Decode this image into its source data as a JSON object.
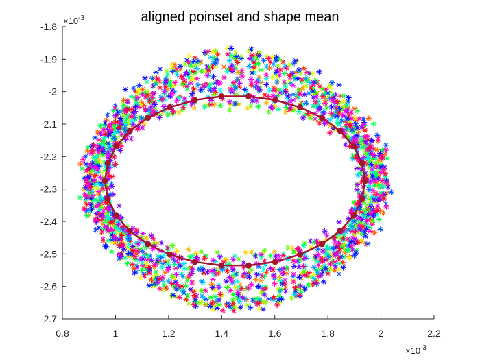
{
  "chart_data": {
    "type": "scatter",
    "title": "aligned poinset and shape mean",
    "xlabel": "",
    "ylabel": "",
    "xlim": [
      0.8,
      2.2
    ],
    "ylim": [
      -2.7,
      -1.8
    ],
    "xticks": [
      "0.8",
      "1",
      "1.2",
      "1.4",
      "1.6",
      "1.8",
      "2",
      "2.2"
    ],
    "yticks": [
      "-1.8",
      "-1.9",
      "-2",
      "-2.1",
      "-2.2",
      "-2.3",
      "-2.4",
      "-2.5",
      "-2.6",
      "-2.7"
    ],
    "x_exponent": {
      "base": "×10",
      "power": "-3"
    },
    "y_exponent": {
      "base": "×10",
      "power": "-3"
    },
    "grid": false,
    "legend": "none",
    "pointset": {
      "description_marker": "*",
      "count_per_shape": 40,
      "shape_count": 50,
      "center": [
        1.45,
        -2.275
      ],
      "radius_x_range": [
        0.46,
        0.58
      ],
      "radius_y_range": [
        0.23,
        0.4
      ],
      "colormap": "hsv"
    },
    "shape_mean": {
      "marker": "filled-circle",
      "color": "#a2142f",
      "center": [
        1.45,
        -2.275
      ],
      "radius_x": 0.49,
      "radius_y": 0.262,
      "points": 30
    }
  }
}
